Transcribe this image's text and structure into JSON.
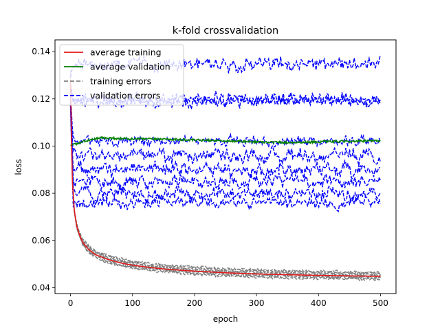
{
  "chart_data": {
    "type": "line",
    "title": "k-fold crossvalidation",
    "xlabel": "epoch",
    "ylabel": "loss",
    "xlim": [
      -25,
      525
    ],
    "ylim": [
      0.0375,
      0.145
    ],
    "xticks": [
      0,
      100,
      200,
      300,
      400,
      500
    ],
    "xtick_labels": [
      "0",
      "100",
      "200",
      "300",
      "400",
      "500"
    ],
    "yticks": [
      0.04,
      0.06,
      0.08,
      0.1,
      0.12,
      0.14
    ],
    "ytick_labels": [
      "0.04",
      "0.06",
      "0.08",
      "0.10",
      "0.12",
      "0.14"
    ],
    "grid": false,
    "legend_position": "top-left",
    "n_epochs": 500,
    "series": [
      {
        "name": "average training",
        "color": "#e41a1c",
        "style": "solid",
        "x": [
          0,
          3,
          6,
          10,
          15,
          20,
          30,
          40,
          50,
          60,
          80,
          100,
          130,
          160,
          200,
          250,
          300,
          350,
          400,
          450,
          500
        ],
        "y": [
          0.128,
          0.085,
          0.073,
          0.066,
          0.062,
          0.059,
          0.056,
          0.054,
          0.053,
          0.052,
          0.0505,
          0.0495,
          0.0485,
          0.0477,
          0.047,
          0.0463,
          0.0458,
          0.0455,
          0.0452,
          0.045,
          0.0448
        ]
      },
      {
        "name": "average validation",
        "color": "#008000",
        "style": "solid",
        "x": [
          0,
          10,
          30,
          50,
          100,
          150,
          200,
          250,
          300,
          350,
          400,
          450,
          500
        ],
        "y": [
          0.1005,
          0.101,
          0.1025,
          0.1035,
          0.103,
          0.103,
          0.1025,
          0.1022,
          0.1018,
          0.1015,
          0.1018,
          0.102,
          0.1022
        ]
      }
    ],
    "fold_series": {
      "training_errors": {
        "name": "training errors",
        "color": "#808080",
        "style": "dashed",
        "folds": [
          {
            "y_end": 0.0435,
            "y_start": 0.13
          },
          {
            "y_end": 0.044,
            "y_start": 0.125
          },
          {
            "y_end": 0.0445,
            "y_start": 0.128
          },
          {
            "y_end": 0.045,
            "y_start": 0.132
          },
          {
            "y_end": 0.0455,
            "y_start": 0.126
          },
          {
            "y_end": 0.046,
            "y_start": 0.124
          },
          {
            "y_end": 0.0465,
            "y_start": 0.13
          }
        ]
      },
      "validation_errors": {
        "name": "validation errors",
        "color": "#0000ff",
        "style": "dashed",
        "folds": [
          {
            "level": 0.1345,
            "noise": 0.0028
          },
          {
            "level": 0.12,
            "noise": 0.0028
          },
          {
            "level": 0.119,
            "noise": 0.0022
          },
          {
            "level": 0.102,
            "noise": 0.002
          },
          {
            "level": 0.096,
            "noise": 0.003
          },
          {
            "level": 0.09,
            "noise": 0.003
          },
          {
            "level": 0.085,
            "noise": 0.0028
          },
          {
            "level": 0.08,
            "noise": 0.0028
          },
          {
            "level": 0.076,
            "noise": 0.0022
          }
        ]
      }
    },
    "legend": [
      {
        "label": "average training",
        "color": "#e41a1c",
        "style": "solid"
      },
      {
        "label": "average validation",
        "color": "#008000",
        "style": "solid"
      },
      {
        "label": "training errors",
        "color": "#808080",
        "style": "dashed"
      },
      {
        "label": "validation errors",
        "color": "#0000ff",
        "style": "dashed"
      }
    ]
  }
}
